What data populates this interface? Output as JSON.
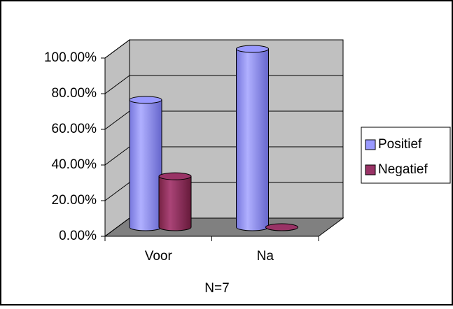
{
  "chart_data": {
    "type": "bar3d",
    "categories": [
      "Voor",
      "Na"
    ],
    "series": [
      {
        "name": "Positief",
        "color": "#9999ff",
        "values": [
          71.43,
          100
        ]
      },
      {
        "name": "Negatief",
        "color": "#993366",
        "values": [
          28.57,
          0
        ]
      }
    ],
    "ylim": [
      0,
      100
    ],
    "yticks": [
      {
        "value": 0,
        "label": "0.00%"
      },
      {
        "value": 20,
        "label": "20.00%"
      },
      {
        "value": 40,
        "label": "40.00%"
      },
      {
        "value": 60,
        "label": "60.00%"
      },
      {
        "value": 80,
        "label": "80.00%"
      },
      {
        "value": 100,
        "label": "100.00%"
      }
    ],
    "xlabel": "N=7",
    "grid": true,
    "legend": "right"
  }
}
